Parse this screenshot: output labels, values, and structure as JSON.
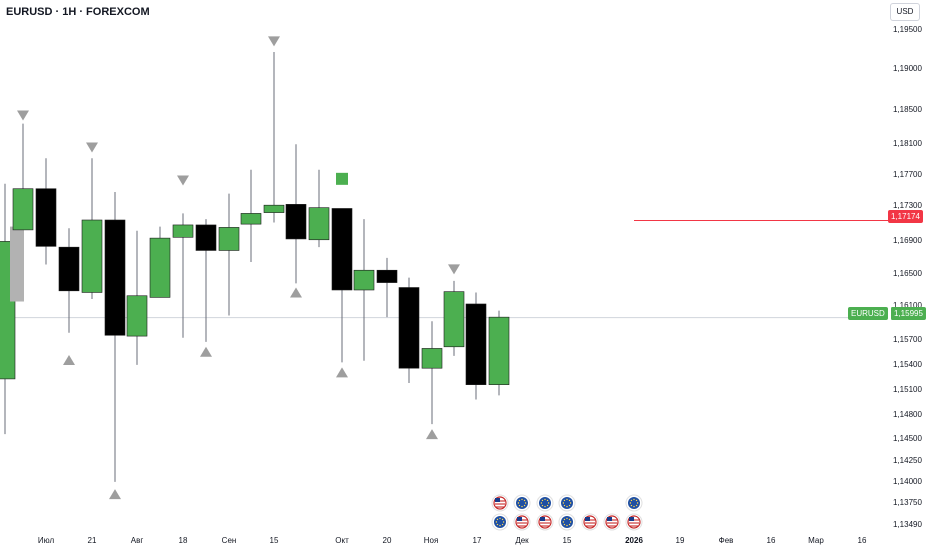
{
  "header": {
    "symbol_title": "EURUSD · 1H · FOREXCOM",
    "currency_button": "USD"
  },
  "colors": {
    "bullish": "#4caf50",
    "bearish": "#000000",
    "wick": "#6a6d78",
    "marker": "#9e9e9e",
    "level_line": "#f23645",
    "last_price_line": "#d1d4dc",
    "signal_square": "#4caf50"
  },
  "price_axis": {
    "labels": [
      "1,19500",
      "1,19000",
      "1,18500",
      "1,18100",
      "1,17700",
      "1,17300",
      "1,16900",
      "1,16500",
      "1,16100",
      "1,15700",
      "1,15400",
      "1,15100",
      "1,14800",
      "1,14500",
      "1,14250",
      "1,14000",
      "1,13750",
      "1,13490"
    ]
  },
  "time_axis": {
    "labels": [
      "Июл",
      "21",
      "Авг",
      "18",
      "Сен",
      "15",
      "Окт",
      "20",
      "Ноя",
      "17",
      "Дек",
      "15",
      "2026",
      "19",
      "Фев",
      "16",
      "Мар",
      "16"
    ],
    "year_label": "2026"
  },
  "price_tags": {
    "symbol": "EURUSD",
    "last_price": "1,15995",
    "level": "1,17174"
  },
  "chart_data": {
    "type": "candlestick",
    "symbol": "EURUSD",
    "timeframe": "1H",
    "exchange": "FOREXCOM",
    "candles": [
      {
        "x": 5,
        "open": 1.1525,
        "high": 1.1762,
        "low": 1.1458,
        "close": 1.1692
      },
      {
        "x": 17,
        "open": 1.1619,
        "high": 1.171,
        "low": 1.1619,
        "close": 1.171,
        "style": "ghost"
      },
      {
        "x": 23,
        "open": 1.1706,
        "high": 1.1835,
        "low": 1.1706,
        "close": 1.1756
      },
      {
        "x": 46,
        "open": 1.1756,
        "high": 1.1793,
        "low": 1.1664,
        "close": 1.1686
      },
      {
        "x": 69,
        "open": 1.1685,
        "high": 1.1708,
        "low": 1.1581,
        "close": 1.1632
      },
      {
        "x": 92,
        "open": 1.163,
        "high": 1.1793,
        "low": 1.1622,
        "close": 1.1718
      },
      {
        "x": 115,
        "open": 1.1718,
        "high": 1.1752,
        "low": 1.14,
        "close": 1.1578
      },
      {
        "x": 137,
        "open": 1.1577,
        "high": 1.1705,
        "low": 1.1542,
        "close": 1.1626
      },
      {
        "x": 160,
        "open": 1.1624,
        "high": 1.171,
        "low": 1.1624,
        "close": 1.1696
      },
      {
        "x": 183,
        "open": 1.1697,
        "high": 1.1726,
        "low": 1.1575,
        "close": 1.1712
      },
      {
        "x": 206,
        "open": 1.1712,
        "high": 1.1719,
        "low": 1.157,
        "close": 1.1681
      },
      {
        "x": 229,
        "open": 1.1681,
        "high": 1.175,
        "low": 1.1602,
        "close": 1.1709
      },
      {
        "x": 251,
        "open": 1.1713,
        "high": 1.1779,
        "low": 1.1667,
        "close": 1.1726
      },
      {
        "x": 274,
        "open": 1.1727,
        "high": 1.1922,
        "low": 1.1715,
        "close": 1.1736
      },
      {
        "x": 296,
        "open": 1.1737,
        "high": 1.181,
        "low": 1.1641,
        "close": 1.1695
      },
      {
        "x": 319,
        "open": 1.1694,
        "high": 1.1779,
        "low": 1.1685,
        "close": 1.1733
      },
      {
        "x": 342,
        "open": 1.1732,
        "high": 1.1732,
        "low": 1.1545,
        "close": 1.1633
      },
      {
        "x": 364,
        "open": 1.1633,
        "high": 1.1719,
        "low": 1.1547,
        "close": 1.1657
      },
      {
        "x": 387,
        "open": 1.1657,
        "high": 1.1672,
        "low": 1.16,
        "close": 1.1642
      },
      {
        "x": 409,
        "open": 1.1636,
        "high": 1.1648,
        "low": 1.152,
        "close": 1.1538
      },
      {
        "x": 432,
        "open": 1.1538,
        "high": 1.1595,
        "low": 1.147,
        "close": 1.1562
      },
      {
        "x": 454,
        "open": 1.1564,
        "high": 1.1644,
        "low": 1.1553,
        "close": 1.1631
      },
      {
        "x": 476,
        "open": 1.1616,
        "high": 1.163,
        "low": 1.15,
        "close": 1.1518
      },
      {
        "x": 499,
        "open": 1.1518,
        "high": 1.1608,
        "low": 1.1505,
        "close": 1.16
      }
    ],
    "markers": [
      {
        "x": 23,
        "price": 1.1845,
        "direction": "down"
      },
      {
        "x": 69,
        "price": 1.1548,
        "direction": "up"
      },
      {
        "x": 92,
        "price": 1.1806,
        "direction": "down"
      },
      {
        "x": 115,
        "price": 1.1385,
        "direction": "up"
      },
      {
        "x": 183,
        "price": 1.1766,
        "direction": "down"
      },
      {
        "x": 206,
        "price": 1.1558,
        "direction": "up"
      },
      {
        "x": 274,
        "price": 1.1935,
        "direction": "down"
      },
      {
        "x": 296,
        "price": 1.163,
        "direction": "up"
      },
      {
        "x": 342,
        "price": 1.1533,
        "direction": "up"
      },
      {
        "x": 432,
        "price": 1.1458,
        "direction": "up"
      },
      {
        "x": 454,
        "price": 1.1658,
        "direction": "down"
      }
    ],
    "signal_squares": [
      {
        "x": 342,
        "price": 1.1768
      }
    ],
    "horizontal_level": 1.17174,
    "last_price": 1.15995,
    "economic_events": {
      "top_row": [
        "us",
        "eu",
        "eu",
        "eu",
        "",
        "",
        "eu"
      ],
      "bottom_row": [
        "eu",
        "us",
        "us",
        "eu",
        "us",
        "us",
        "us"
      ]
    },
    "ylim": [
      1.1349,
      1.195
    ],
    "grid": false
  }
}
